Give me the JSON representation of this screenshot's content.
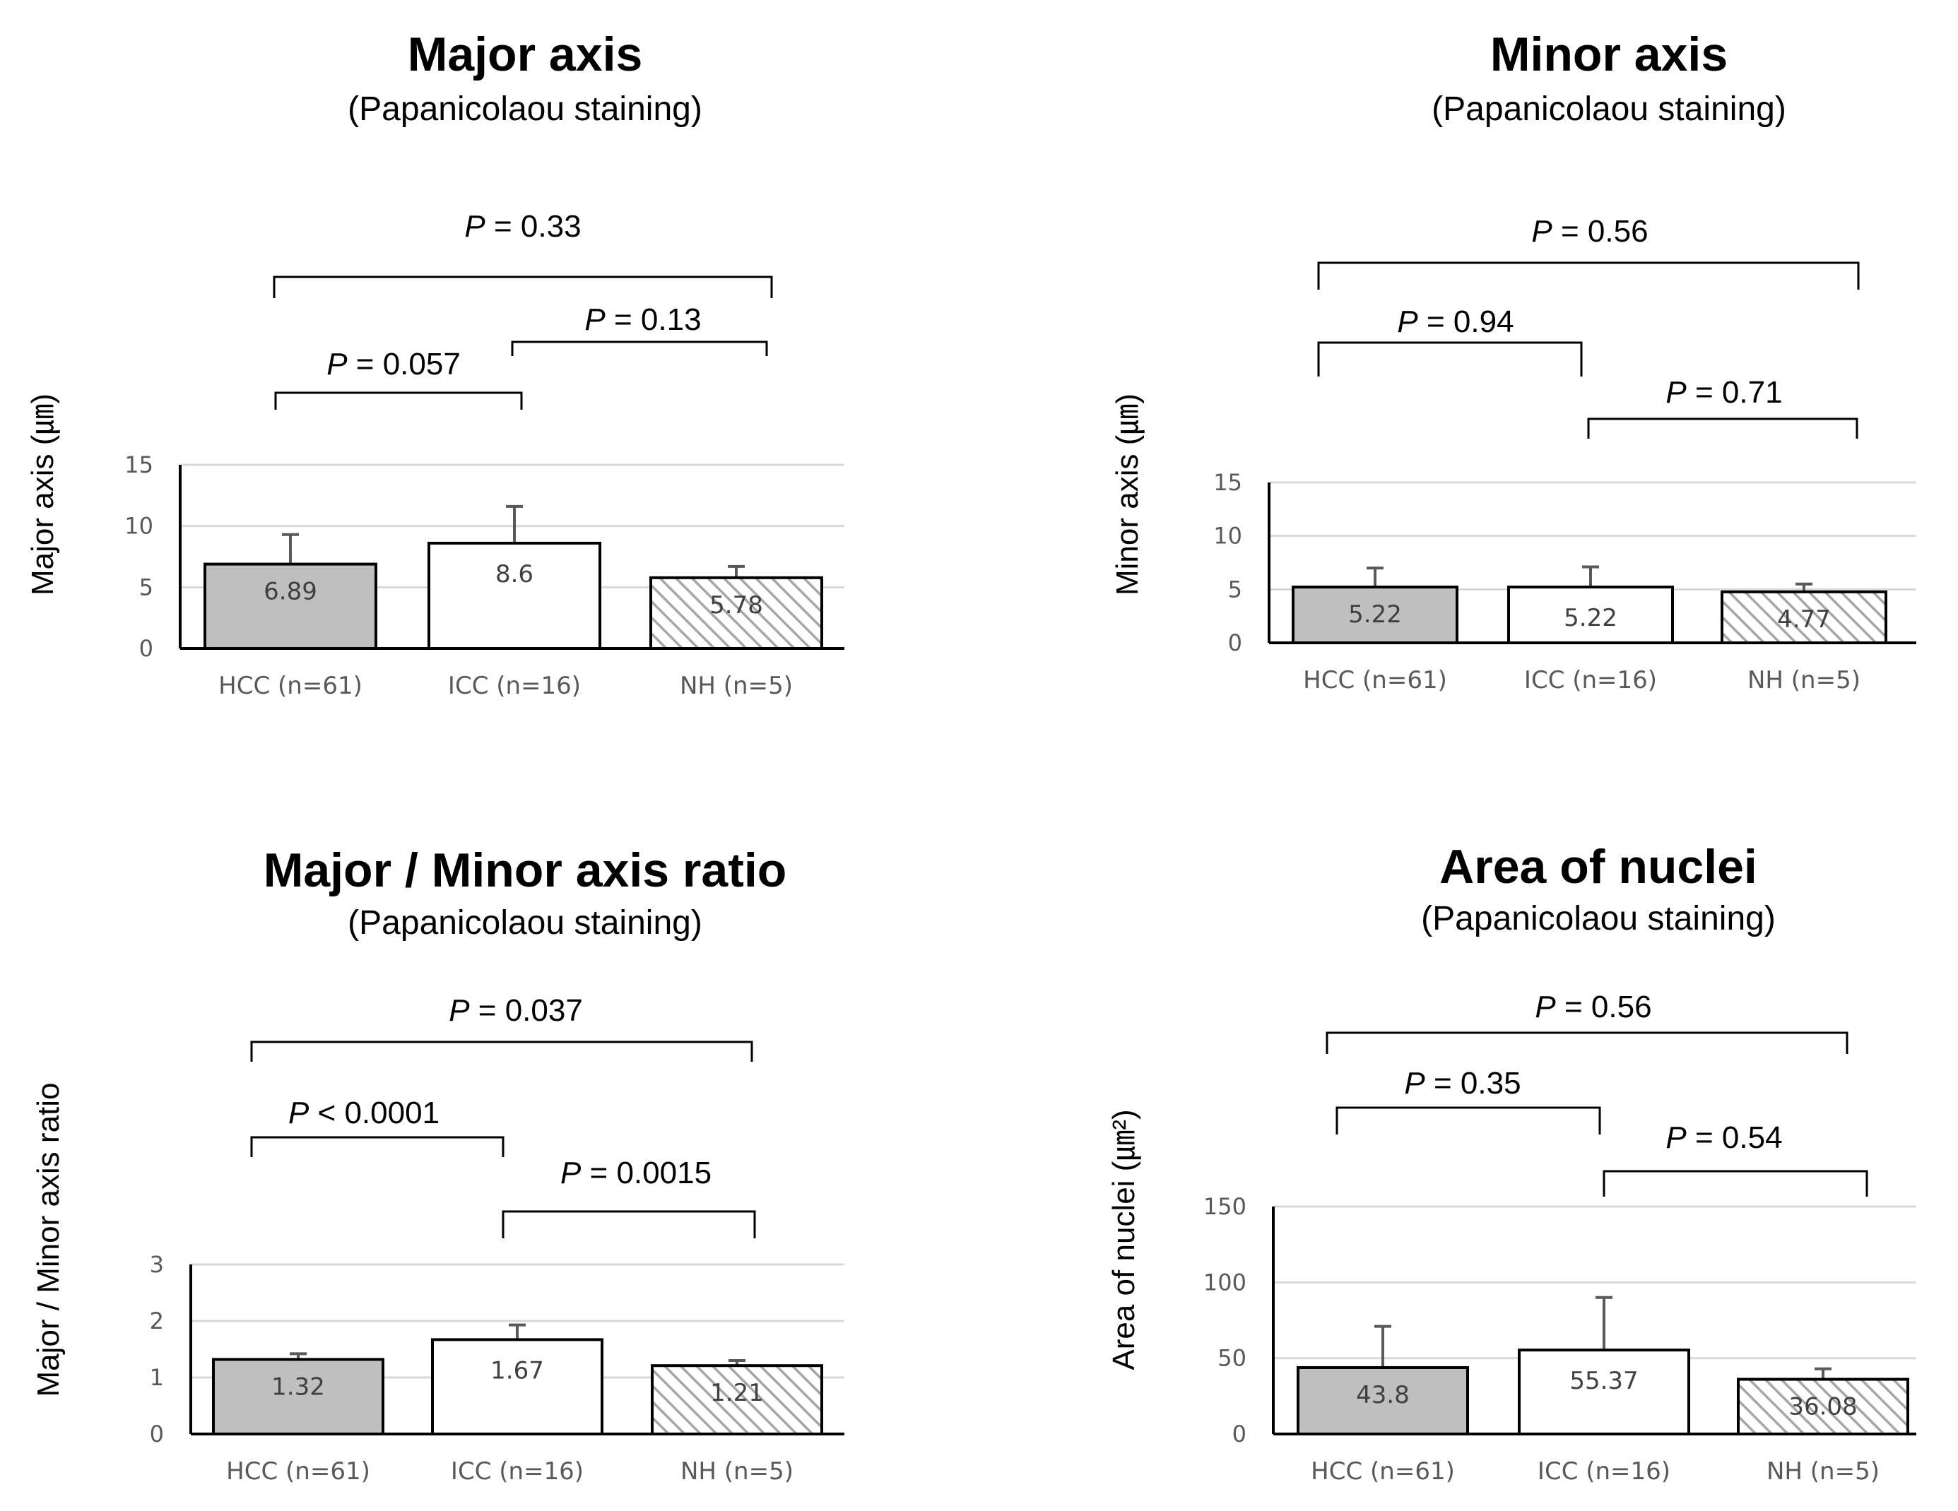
{
  "colors": {
    "hcc_fill": "#bfbfbf",
    "icc_fill": "#ffffff",
    "nh_hatch": "#a6a6a6",
    "grid": "#d9d9d9",
    "axis": "#000000",
    "error_bar": "#595959",
    "text_muted": "#595959"
  },
  "chart_data": [
    {
      "type": "bar",
      "title": "Major axis",
      "subtitle": "(Papanicolaou staining)",
      "ylabel": "Major axis (㎛)",
      "categories": [
        "HCC (n=61)",
        "ICC (n=16)",
        "NH (n=5)"
      ],
      "values": [
        6.89,
        8.6,
        5.78
      ],
      "value_labels": [
        "6.89",
        "8.6",
        "5.78"
      ],
      "error_upper": [
        9.3,
        11.6,
        6.7
      ],
      "ylim": [
        0,
        15
      ],
      "yticks": [
        0,
        5,
        10,
        15
      ],
      "ytick_labels": [
        "0",
        "5",
        "10",
        "15"
      ],
      "comparisons": [
        {
          "from": 0,
          "to": 2,
          "p_symbol": "P",
          "p_text": "= 0.33"
        },
        {
          "from": 0,
          "to": 1,
          "p_symbol": "P",
          "p_text": "= 0.057"
        },
        {
          "from": 1,
          "to": 2,
          "p_symbol": "P",
          "p_text": "= 0.13"
        }
      ]
    },
    {
      "type": "bar",
      "title": "Minor axis",
      "subtitle": "(Papanicolaou staining)",
      "ylabel": "Minor axis (㎛)",
      "categories": [
        "HCC (n=61)",
        "ICC (n=16)",
        "NH (n=5)"
      ],
      "values": [
        5.22,
        5.22,
        4.77
      ],
      "value_labels": [
        "5.22",
        "5.22",
        "4.77"
      ],
      "error_upper": [
        7.0,
        7.1,
        5.5
      ],
      "ylim": [
        0,
        15
      ],
      "yticks": [
        0,
        5,
        10,
        15
      ],
      "ytick_labels": [
        "0",
        "5",
        "10",
        "15"
      ],
      "comparisons": [
        {
          "from": 0,
          "to": 2,
          "p_symbol": "P",
          "p_text": "= 0.56"
        },
        {
          "from": 0,
          "to": 1,
          "p_symbol": "P",
          "p_text": "= 0.94"
        },
        {
          "from": 1,
          "to": 2,
          "p_symbol": "P",
          "p_text": "= 0.71"
        }
      ]
    },
    {
      "type": "bar",
      "title": "Major / Minor axis ratio",
      "subtitle": "(Papanicolaou staining)",
      "ylabel": "Major / Minor axis ratio",
      "categories": [
        "HCC (n=61)",
        "ICC (n=16)",
        "NH (n=5)"
      ],
      "values": [
        1.32,
        1.67,
        1.21
      ],
      "value_labels": [
        "1.32",
        "1.67",
        "1.21"
      ],
      "error_upper": [
        1.42,
        1.93,
        1.3
      ],
      "ylim": [
        0,
        3
      ],
      "yticks": [
        0,
        1,
        2,
        3
      ],
      "ytick_labels": [
        "0",
        "1",
        "2",
        "3"
      ],
      "comparisons": [
        {
          "from": 0,
          "to": 2,
          "p_symbol": "P",
          "p_text": "= 0.037"
        },
        {
          "from": 0,
          "to": 1,
          "p_symbol": "P",
          "p_text": "< 0.0001"
        },
        {
          "from": 1,
          "to": 2,
          "p_symbol": "P",
          "p_text": "= 0.0015"
        }
      ]
    },
    {
      "type": "bar",
      "title": "Area of nuclei",
      "subtitle": "(Papanicolaou staining)",
      "ylabel": "Area of nuclei (㎛²)",
      "categories": [
        "HCC (n=61)",
        "ICC (n=16)",
        "NH (n=5)"
      ],
      "values": [
        43.8,
        55.37,
        36.08
      ],
      "value_labels": [
        "43.8",
        "55.37",
        "36.08"
      ],
      "error_upper": [
        71,
        90,
        43
      ],
      "ylim": [
        0,
        150
      ],
      "yticks": [
        0,
        50,
        100,
        150
      ],
      "ytick_labels": [
        "0",
        "50",
        "100",
        "150"
      ],
      "comparisons": [
        {
          "from": 0,
          "to": 2,
          "p_symbol": "P",
          "p_text": "= 0.56"
        },
        {
          "from": 0,
          "to": 1,
          "p_symbol": "P",
          "p_text": "= 0.35"
        },
        {
          "from": 1,
          "to": 2,
          "p_symbol": "P",
          "p_text": "= 0.54"
        }
      ]
    }
  ]
}
